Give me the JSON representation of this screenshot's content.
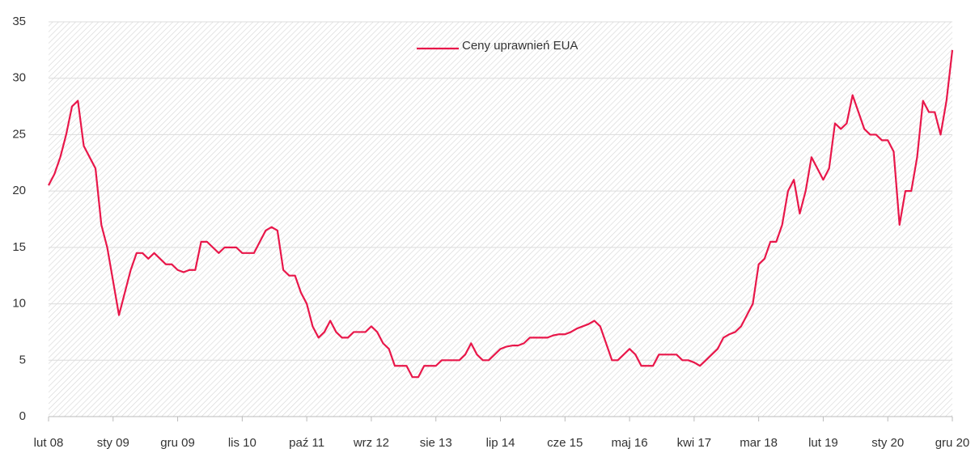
{
  "chart_data": {
    "type": "line",
    "categories": [
      "lut 08",
      null,
      null,
      null,
      null,
      null,
      null,
      null,
      null,
      null,
      null,
      "sty 09",
      null,
      null,
      null,
      null,
      null,
      null,
      null,
      null,
      null,
      null,
      "gru 09",
      null,
      null,
      null,
      null,
      null,
      null,
      null,
      null,
      null,
      null,
      "lis 10",
      null,
      null,
      null,
      null,
      null,
      null,
      null,
      null,
      null,
      null,
      "paź 11",
      null,
      null,
      null,
      null,
      null,
      null,
      null,
      null,
      null,
      null,
      "wrz 12",
      null,
      null,
      null,
      null,
      null,
      null,
      null,
      null,
      null,
      null,
      "sie 13",
      null,
      null,
      null,
      null,
      null,
      null,
      null,
      null,
      null,
      null,
      "lip 14",
      null,
      null,
      null,
      null,
      null,
      null,
      null,
      null,
      null,
      null,
      "cze 15",
      null,
      null,
      null,
      null,
      null,
      null,
      null,
      null,
      null,
      null,
      "maj 16",
      null,
      null,
      null,
      null,
      null,
      null,
      null,
      null,
      null,
      null,
      "kwi 17",
      null,
      null,
      null,
      null,
      null,
      null,
      null,
      null,
      null,
      null,
      "mar 18",
      null,
      null,
      null,
      null,
      null,
      null,
      null,
      null,
      null,
      null,
      "lut 19",
      null,
      null,
      null,
      null,
      null,
      null,
      null,
      null,
      null,
      null,
      "sty 20",
      null,
      null,
      null,
      null,
      null,
      null,
      null,
      null,
      null,
      null,
      "gru 20"
    ],
    "series": [
      {
        "name": "Ceny uprawnień EUA",
        "color": "#e8174a",
        "values": [
          20.5,
          21.5,
          23,
          25,
          27.5,
          28,
          24,
          23,
          22,
          17,
          15,
          12,
          9,
          11,
          13,
          14.5,
          14.5,
          14,
          14.5,
          14,
          13.5,
          13.5,
          13,
          12.8,
          13,
          13,
          15.5,
          15.5,
          15,
          14.5,
          15,
          15,
          15,
          14.5,
          14.5,
          14.5,
          15.5,
          16.5,
          16.8,
          16.5,
          13,
          12.5,
          12.5,
          11,
          10,
          8,
          7,
          7.5,
          8.5,
          7.5,
          7,
          7,
          7.5,
          7.5,
          7.5,
          8,
          7.5,
          6.5,
          6,
          4.5,
          4.5,
          4.5,
          3.5,
          3.5,
          4.5,
          4.5,
          4.5,
          5,
          5,
          5,
          5,
          5.5,
          6.5,
          5.5,
          5,
          5,
          5.5,
          6,
          6.2,
          6.3,
          6.3,
          6.5,
          7,
          7,
          7,
          7,
          7.2,
          7.3,
          7.3,
          7.5,
          7.8,
          8,
          8.2,
          8.5,
          8,
          6.5,
          5,
          5,
          5.5,
          6,
          5.5,
          4.5,
          4.5,
          4.5,
          5.5,
          5.5,
          5.5,
          5.5,
          5,
          5,
          4.8,
          4.5,
          5,
          5.5,
          6,
          7,
          7.3,
          7.5,
          8,
          9,
          10,
          13.5,
          14,
          15.5,
          15.5,
          17,
          20,
          21,
          18,
          20,
          23,
          22,
          21,
          22,
          26,
          25.5,
          26,
          28.5,
          27,
          25.5,
          25,
          25,
          24.5,
          24.5,
          23.5,
          17,
          20,
          20,
          23,
          28,
          27,
          27,
          25,
          28,
          32.5
        ]
      }
    ],
    "ylim": [
      0,
      35
    ],
    "yticks": [
      0,
      5,
      10,
      15,
      20,
      25,
      30,
      35
    ],
    "grid": true,
    "legend": "top"
  }
}
